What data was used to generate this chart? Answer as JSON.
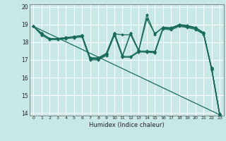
{
  "title": "",
  "xlabel": "Humidex (Indice chaleur)",
  "background_color": "#c8e8e8",
  "grid_color": "#ffffff",
  "line_color": "#1a6b5a",
  "xlim": [
    -0.5,
    23.5
  ],
  "ylim": [
    13.85,
    20.15
  ],
  "yticks": [
    14,
    15,
    16,
    17,
    18,
    19,
    20
  ],
  "xticks": [
    0,
    1,
    2,
    3,
    4,
    5,
    6,
    7,
    8,
    9,
    10,
    11,
    12,
    13,
    14,
    15,
    16,
    17,
    18,
    19,
    20,
    21,
    22,
    23
  ],
  "series": [
    [
      18.9,
      18.5,
      18.2,
      18.2,
      18.25,
      18.3,
      18.35,
      17.05,
      17.05,
      17.3,
      18.45,
      17.2,
      17.2,
      17.5,
      17.48,
      17.45,
      18.8,
      18.75,
      18.95,
      18.88,
      18.78,
      18.5,
      16.5,
      13.9
    ],
    [
      18.9,
      18.5,
      18.2,
      18.2,
      18.25,
      18.3,
      18.37,
      17.08,
      17.08,
      17.32,
      18.48,
      18.42,
      18.42,
      17.5,
      17.5,
      17.48,
      18.82,
      18.78,
      18.97,
      18.9,
      18.8,
      18.52,
      16.52,
      13.92
    ],
    [
      18.9,
      18.5,
      18.2,
      18.2,
      18.26,
      18.31,
      18.38,
      17.1,
      17.1,
      17.35,
      18.5,
      17.22,
      18.5,
      17.52,
      19.3,
      18.5,
      18.83,
      18.8,
      18.98,
      18.92,
      18.82,
      18.53,
      16.53,
      13.93
    ],
    [
      18.9,
      18.5,
      18.2,
      18.2,
      18.27,
      18.32,
      18.39,
      17.12,
      17.12,
      17.37,
      18.52,
      17.25,
      18.52,
      17.55,
      19.55,
      18.45,
      18.85,
      18.82,
      19.0,
      18.95,
      18.84,
      18.55,
      16.55,
      13.95
    ],
    [
      18.9,
      18.4,
      18.15,
      18.15,
      18.2,
      18.25,
      18.3,
      17.0,
      17.0,
      17.25,
      18.4,
      17.15,
      17.15,
      17.45,
      17.43,
      17.4,
      18.75,
      18.7,
      18.9,
      18.83,
      18.73,
      18.45,
      16.45,
      13.85
    ]
  ],
  "marker": "D",
  "markersize": 2.0,
  "linewidth": 0.9
}
